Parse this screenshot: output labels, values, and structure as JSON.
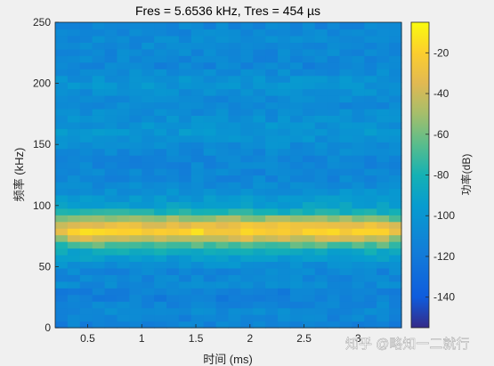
{
  "chart_data": {
    "type": "heatmap",
    "title": "Fres = 5.6536 kHz, Tres = 454 µs",
    "xlabel": "时间 (ms)",
    "ylabel": "频率 (kHz)",
    "colorbar_label": "功率(dB)",
    "xlim": [
      0.2,
      3.4
    ],
    "ylim": [
      0,
      250
    ],
    "clim": [
      -155,
      -5
    ],
    "x_ticks": [
      0.5,
      1,
      1.5,
      2,
      2.5,
      3
    ],
    "x_tick_labels": [
      "0.5",
      "1",
      "1.5",
      "2",
      "2.5",
      "3"
    ],
    "y_ticks": [
      0,
      50,
      100,
      150,
      200,
      250
    ],
    "y_tick_labels": [
      "0",
      "50",
      "100",
      "150",
      "200",
      "250"
    ],
    "colorbar_ticks": [
      -20,
      -40,
      -60,
      -80,
      -100,
      -120,
      -140
    ],
    "colorbar_tick_labels": [
      "-20",
      "-40",
      "-60",
      "-80",
      "-100",
      "-120",
      "-140"
    ],
    "colormap": "parula",
    "grid": false,
    "frequency_profile_khz": [
      0,
      15,
      28,
      35,
      45,
      55,
      65,
      72,
      80,
      88,
      97,
      105,
      120,
      140,
      160,
      185,
      200,
      215,
      235,
      250
    ],
    "frequency_profile_db": [
      -115,
      -108,
      -118,
      -108,
      -112,
      -100,
      -82,
      -45,
      -15,
      -45,
      -90,
      -98,
      -110,
      -112,
      -100,
      -110,
      -100,
      -112,
      -108,
      -112
    ]
  },
  "watermark": "知乎 @略知一二就行"
}
